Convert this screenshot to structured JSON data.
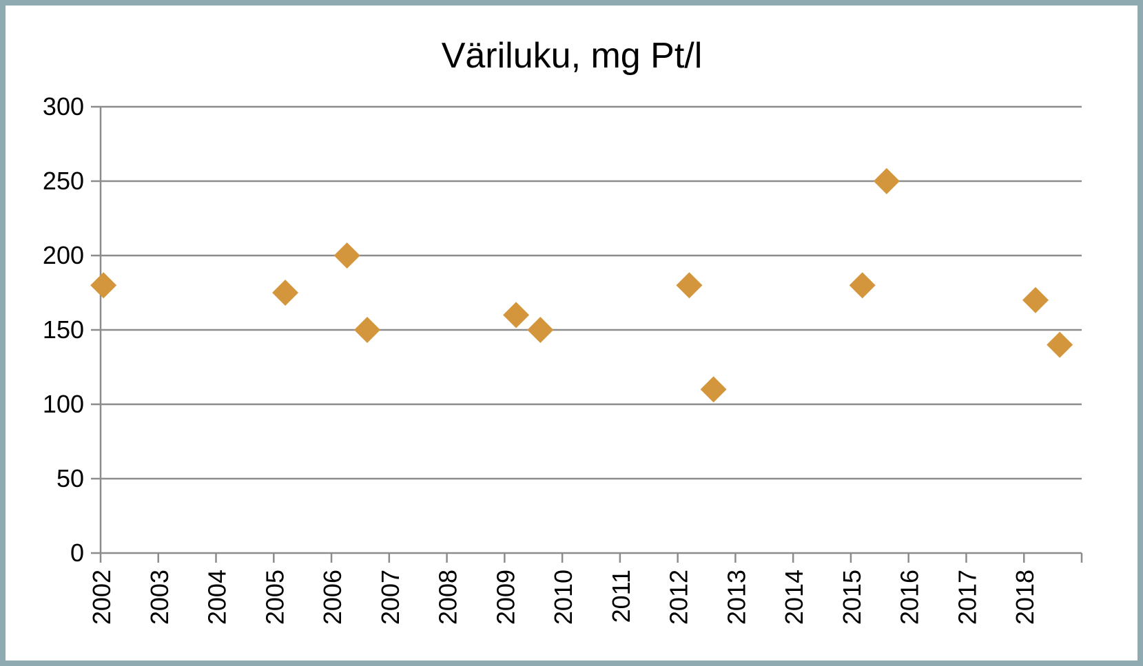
{
  "chart_data": {
    "type": "scatter",
    "title": "Väriluku, mg Pt/l",
    "xlabel": "",
    "ylabel": "",
    "xlim": [
      2002,
      2019
    ],
    "ylim": [
      0,
      300
    ],
    "yticks": [
      "0",
      "50",
      "100",
      "150",
      "200",
      "250",
      "300"
    ],
    "xticks": [
      "2002",
      "2003",
      "2004",
      "2005",
      "2006",
      "2007",
      "2008",
      "2009",
      "2010",
      "2011",
      "2012",
      "2013",
      "2014",
      "2015",
      "2016",
      "2017",
      "2018"
    ],
    "grid": true,
    "legend": "none",
    "marker": "diamond",
    "marker_color": "#d4963c",
    "grid_color": "#8c8c8c",
    "series": [
      {
        "points": [
          {
            "x": 2002.05,
            "y": 180
          },
          {
            "x": 2005.2,
            "y": 175
          },
          {
            "x": 2006.27,
            "y": 200
          },
          {
            "x": 2006.62,
            "y": 150
          },
          {
            "x": 2009.2,
            "y": 160
          },
          {
            "x": 2009.62,
            "y": 150
          },
          {
            "x": 2012.2,
            "y": 180
          },
          {
            "x": 2012.62,
            "y": 110
          },
          {
            "x": 2015.2,
            "y": 180
          },
          {
            "x": 2015.62,
            "y": 250
          },
          {
            "x": 2018.2,
            "y": 170
          },
          {
            "x": 2018.62,
            "y": 140
          }
        ]
      }
    ]
  }
}
